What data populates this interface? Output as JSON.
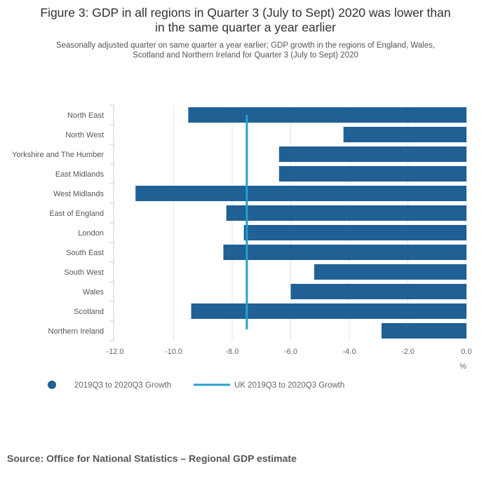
{
  "title_line1": "Figure 3: GDP in all regions in Quarter 3 (July to Sept) 2020 was lower than",
  "title_line2": "in the same quarter a year earlier",
  "subtitle_line1": "Seasonally adjusted quarter on same quarter a year earlier; GDP growth in the regions of England, Wales,",
  "subtitle_line2": "Scotland and Northern Ireland for Quarter 3 (July to Sept) 2020",
  "source": "Source: Office for National Statistics – Regional GDP estimate",
  "chart_data": {
    "type": "bar",
    "orientation": "horizontal",
    "categories": [
      "North East",
      "North West",
      "Yorkshire and The Humber",
      "East Midlands",
      "West Midlands",
      "East of England",
      "London",
      "South East",
      "South West",
      "Wales",
      "Scotland",
      "Northern Ireland"
    ],
    "series": [
      {
        "name": "2019Q3 to 2020Q3 Growth",
        "color": "#206095",
        "values": [
          -9.5,
          -4.2,
          -6.4,
          -6.4,
          -11.3,
          -8.2,
          -7.6,
          -8.3,
          -5.2,
          -6.0,
          -9.4,
          -2.9
        ]
      }
    ],
    "reference_line": {
      "name": "UK 2019Q3 to 2020Q3 Growth",
      "value": -7.5,
      "color": "#27a0cc"
    },
    "xlim": [
      -12.0,
      0.0
    ],
    "xticks": [
      "-12.0",
      "-10.0",
      "-8.0",
      "-6.0",
      "-4.0",
      "-2.0",
      "0.0"
    ],
    "xtick_values": [
      -12,
      -10,
      -8,
      -6,
      -4,
      -2,
      0
    ],
    "xlabel": "%",
    "grid": true,
    "legend_position": "bottom-left"
  }
}
